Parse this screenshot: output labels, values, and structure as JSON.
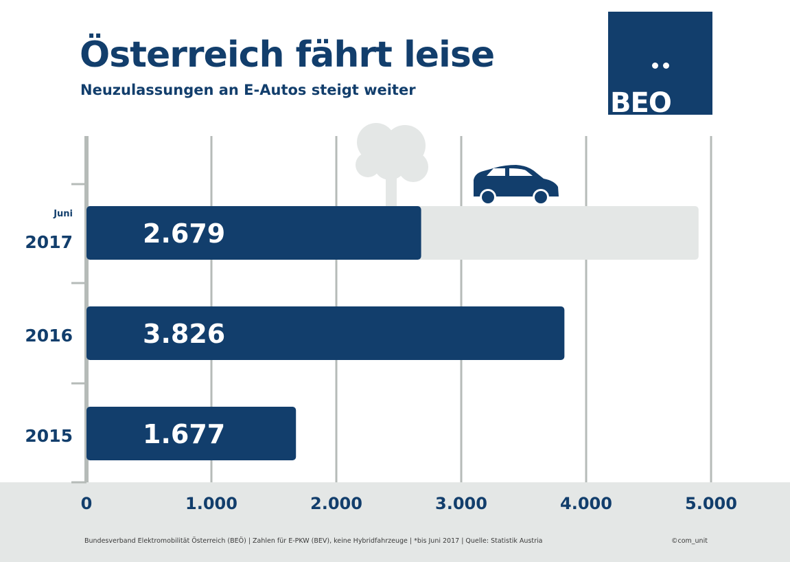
{
  "colors": {
    "bar": "#123e6c",
    "projection": "#e4e7e6",
    "axis": "#b6bbb8",
    "tree": "#e4e7e6",
    "text": "#123e6c"
  },
  "logo": {
    "text": "BEO"
  },
  "icons": [
    "tree-icon",
    "car-icon"
  ],
  "chart_data": {
    "type": "bar",
    "orientation": "horizontal",
    "title": "Österreich fährt leise",
    "subtitle": "Neuzulassungen an E-Autos steigt weiter",
    "categories": [
      {
        "label": "2017",
        "note": "Juni",
        "value": 2679,
        "value_label": "2.679",
        "projected_max": 4900
      },
      {
        "label": "2016",
        "note": "",
        "value": 3826,
        "value_label": "3.826"
      },
      {
        "label": "2015",
        "note": "",
        "value": 1677,
        "value_label": "1.677"
      }
    ],
    "xlim": [
      0,
      5000
    ],
    "xticks": [
      {
        "value": 0,
        "label": "0"
      },
      {
        "value": 1000,
        "label": "1.000"
      },
      {
        "value": 2000,
        "label": "2.000"
      },
      {
        "value": 3000,
        "label": "3.000"
      },
      {
        "value": 4000,
        "label": "4.000"
      },
      {
        "value": 5000,
        "label": "5.000"
      }
    ],
    "grid": true,
    "xlabel": "",
    "ylabel": ""
  },
  "footer": {
    "source": "Bundesverband Elektromobilität Österreich (BEÖ) | Zahlen für E-PKW (BEV), keine Hybridfahrzeuge | *bis Juni 2017 | Quelle: Statistik Austria",
    "credit": "©com_unit"
  }
}
